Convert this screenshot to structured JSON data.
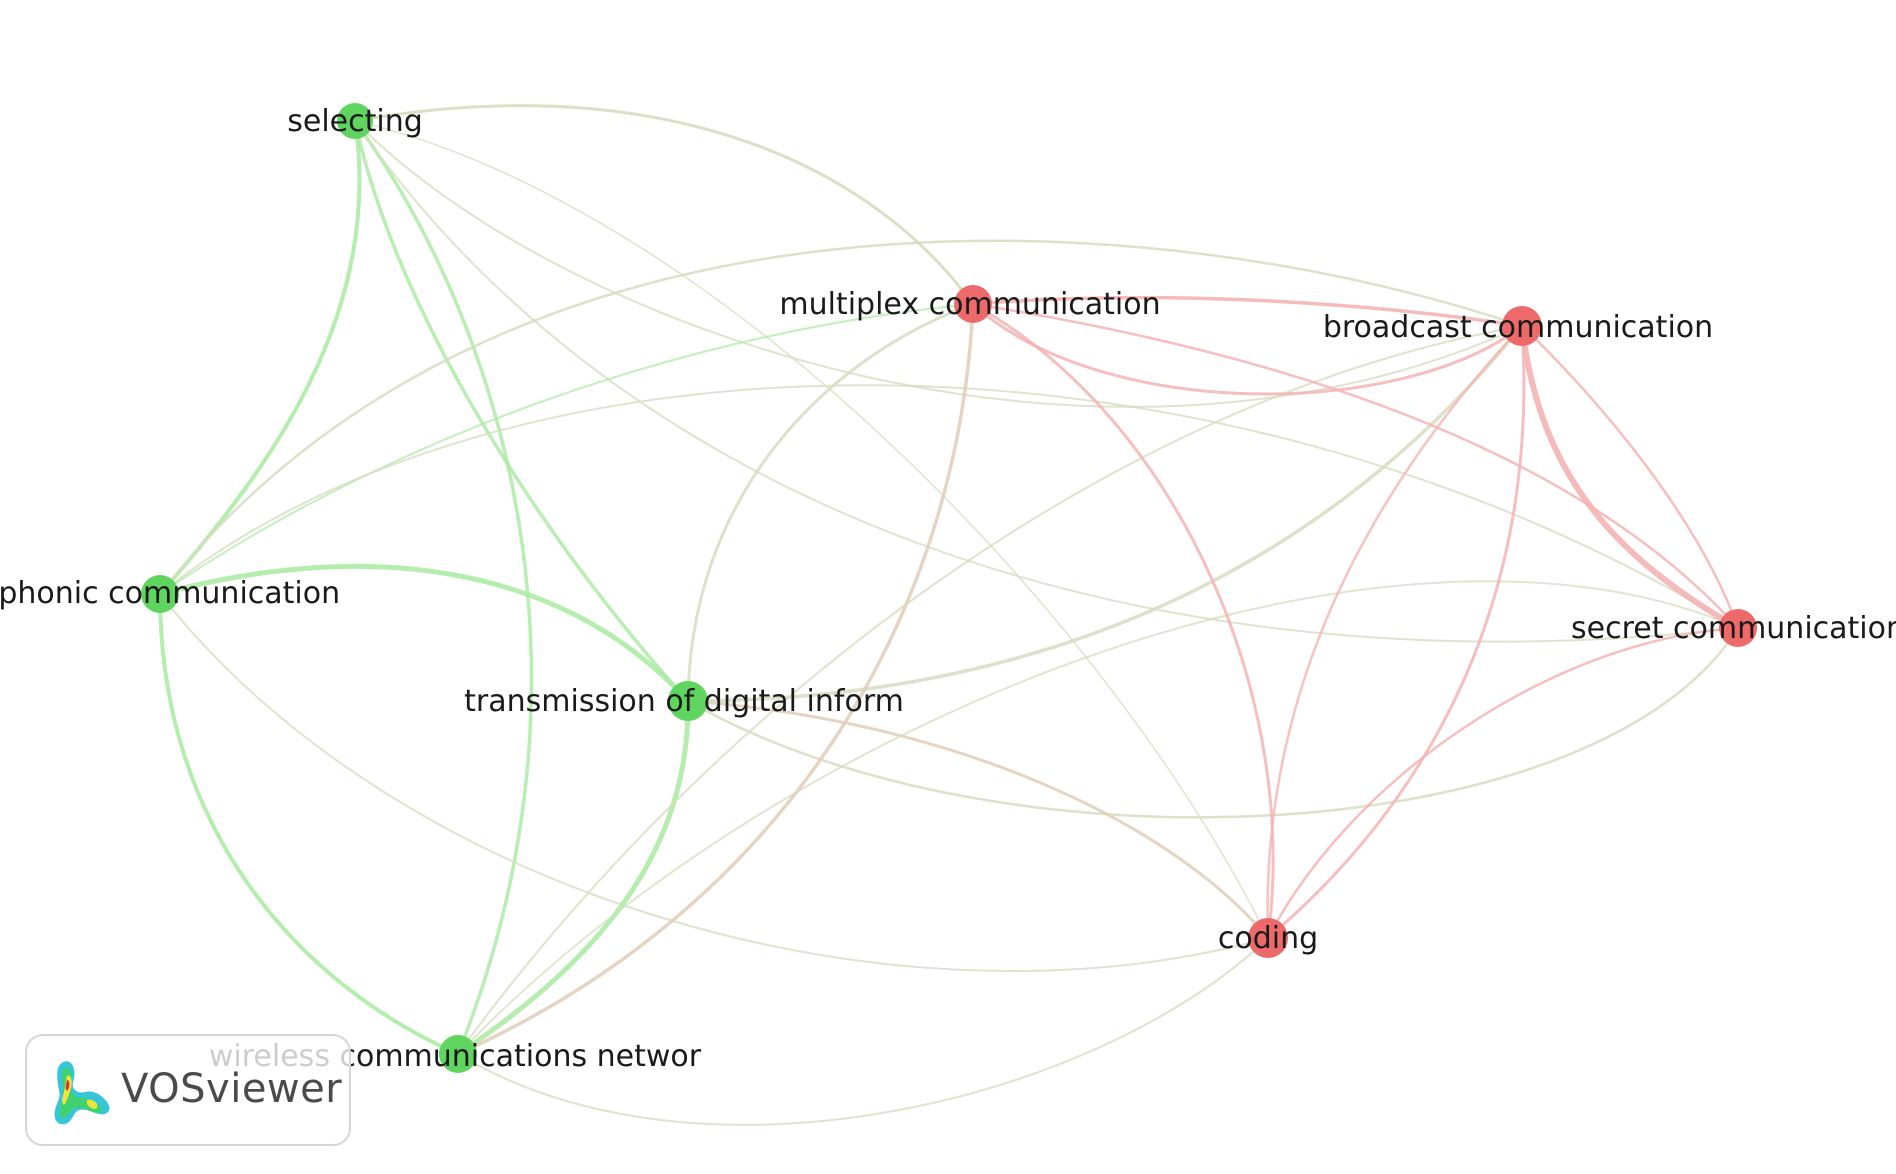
{
  "app": {
    "brand": "VOSviewer"
  },
  "network": {
    "colors": {
      "cluster_green": "#5fd55f",
      "cluster_red": "#ee6a6a",
      "edge_green": "#a8eaa0",
      "edge_red": "#f4b3b3",
      "edge_mixed": "#d6dcc0"
    },
    "nodes": [
      {
        "id": "selecting",
        "label": "selecting",
        "cluster": "green"
      },
      {
        "id": "telephonic",
        "label": "ephonic communication",
        "cluster": "green"
      },
      {
        "id": "transmission",
        "label": "transmission of digital inform",
        "cluster": "green"
      },
      {
        "id": "wireless",
        "label": "wireless communications networ",
        "cluster": "green"
      },
      {
        "id": "multiplex",
        "label": "multiplex communication",
        "cluster": "red"
      },
      {
        "id": "broadcast",
        "label": "broadcast communication",
        "cluster": "red"
      },
      {
        "id": "secret",
        "label": "secret communication",
        "cluster": "red"
      },
      {
        "id": "coding",
        "label": "coding",
        "cluster": "red"
      }
    ],
    "links": [
      [
        "selecting",
        "telephonic"
      ],
      [
        "selecting",
        "transmission"
      ],
      [
        "selecting",
        "wireless"
      ],
      [
        "selecting",
        "multiplex"
      ],
      [
        "selecting",
        "broadcast"
      ],
      [
        "selecting",
        "secret"
      ],
      [
        "selecting",
        "coding"
      ],
      [
        "telephonic",
        "transmission"
      ],
      [
        "telephonic",
        "wireless"
      ],
      [
        "telephonic",
        "multiplex"
      ],
      [
        "telephonic",
        "broadcast"
      ],
      [
        "telephonic",
        "secret"
      ],
      [
        "telephonic",
        "coding"
      ],
      [
        "transmission",
        "wireless"
      ],
      [
        "transmission",
        "multiplex"
      ],
      [
        "transmission",
        "broadcast"
      ],
      [
        "transmission",
        "secret"
      ],
      [
        "transmission",
        "coding"
      ],
      [
        "wireless",
        "multiplex"
      ],
      [
        "wireless",
        "broadcast"
      ],
      [
        "wireless",
        "coding"
      ],
      [
        "wireless",
        "secret"
      ],
      [
        "multiplex",
        "broadcast"
      ],
      [
        "multiplex",
        "secret"
      ],
      [
        "multiplex",
        "coding"
      ],
      [
        "broadcast",
        "secret"
      ],
      [
        "broadcast",
        "coding"
      ],
      [
        "secret",
        "coding"
      ]
    ]
  }
}
